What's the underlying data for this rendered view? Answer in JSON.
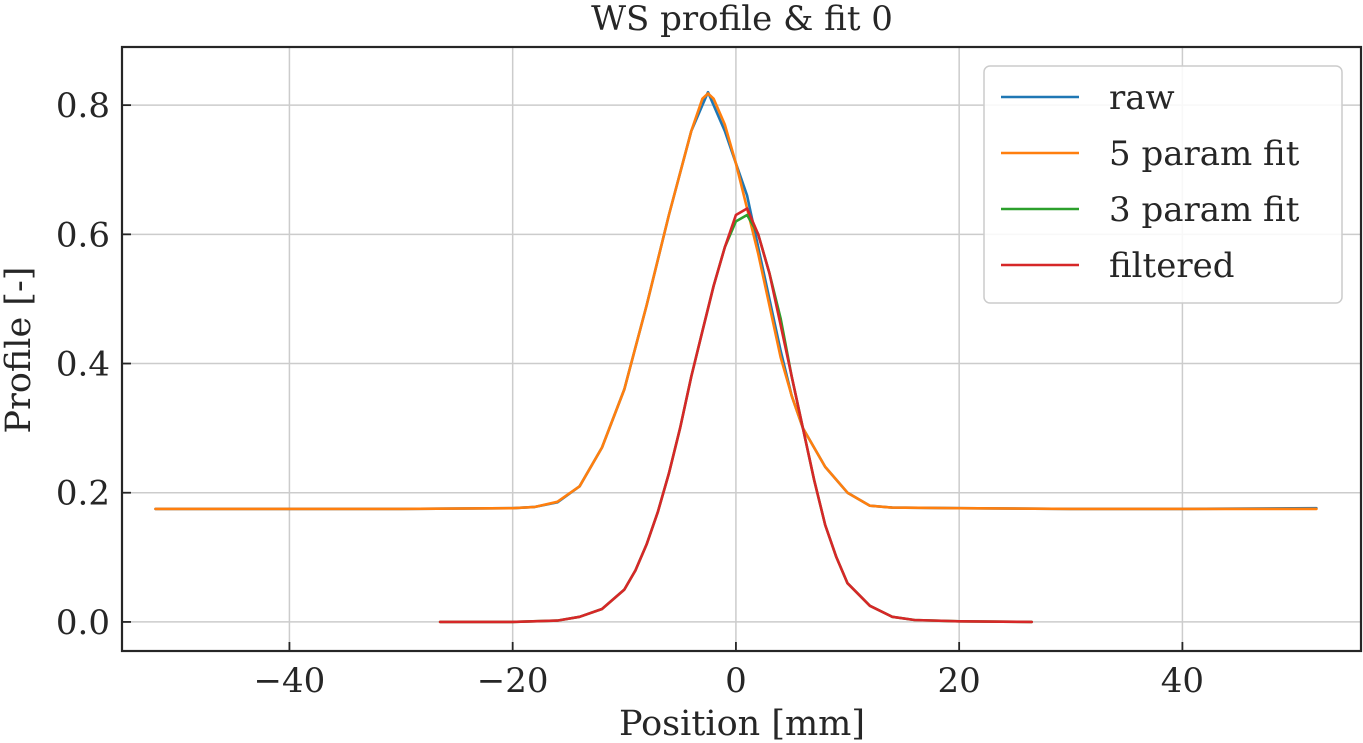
{
  "chart_data": {
    "type": "line",
    "title": "WS profile & fit 0",
    "xlabel": "Position [mm]",
    "ylabel": "Profile [-]",
    "xlim": [
      -55,
      56
    ],
    "ylim": [
      -0.045,
      0.89
    ],
    "xticks": [
      -40,
      -20,
      0,
      20,
      40
    ],
    "xtick_labels": [
      "−40",
      "−20",
      "0",
      "20",
      "40"
    ],
    "yticks": [
      0.0,
      0.2,
      0.4,
      0.6,
      0.8
    ],
    "ytick_labels": [
      "0.0",
      "0.2",
      "0.4",
      "0.6",
      "0.8"
    ],
    "grid": true,
    "legend_position": "top-right",
    "series": [
      {
        "name": "raw",
        "color": "#1f77b4",
        "x": [
          -52,
          -40,
          -30,
          -20,
          -18,
          -16,
          -14,
          -12,
          -10,
          -8,
          -6,
          -4,
          -3,
          -2.5,
          -2,
          -1,
          0,
          1,
          2,
          3,
          4,
          5,
          6,
          8,
          10,
          12,
          14,
          20,
          30,
          40,
          52
        ],
        "y": [
          0.175,
          0.175,
          0.175,
          0.176,
          0.178,
          0.185,
          0.21,
          0.27,
          0.36,
          0.49,
          0.63,
          0.76,
          0.8,
          0.82,
          0.8,
          0.76,
          0.71,
          0.66,
          0.58,
          0.5,
          0.42,
          0.35,
          0.3,
          0.24,
          0.2,
          0.18,
          0.177,
          0.176,
          0.175,
          0.175,
          0.176
        ]
      },
      {
        "name": "5 param fit",
        "color": "#ff7f0e",
        "x": [
          -52,
          -40,
          -30,
          -20,
          -18,
          -16,
          -14,
          -12,
          -10,
          -8,
          -6,
          -4,
          -3,
          -2.5,
          -2,
          -1,
          0,
          1,
          2,
          3,
          4,
          5,
          6,
          8,
          10,
          12,
          14,
          20,
          30,
          40,
          52
        ],
        "y": [
          0.175,
          0.175,
          0.175,
          0.176,
          0.178,
          0.186,
          0.21,
          0.27,
          0.36,
          0.49,
          0.63,
          0.76,
          0.81,
          0.818,
          0.81,
          0.77,
          0.71,
          0.64,
          0.57,
          0.49,
          0.41,
          0.35,
          0.3,
          0.24,
          0.2,
          0.18,
          0.177,
          0.176,
          0.175,
          0.175,
          0.175
        ]
      },
      {
        "name": "3 param fit",
        "color": "#2ca02c",
        "x": [
          -26.5,
          -20,
          -16,
          -14,
          -12,
          -10,
          -9,
          -8,
          -7,
          -6,
          -5,
          -4,
          -3,
          -2,
          -1,
          0,
          1,
          2,
          3,
          4,
          5,
          6,
          7,
          8,
          9,
          10,
          12,
          14,
          16,
          20,
          26.5
        ],
        "y": [
          0.0,
          0.0,
          0.002,
          0.008,
          0.02,
          0.05,
          0.08,
          0.12,
          0.17,
          0.23,
          0.3,
          0.38,
          0.45,
          0.52,
          0.58,
          0.62,
          0.63,
          0.6,
          0.54,
          0.47,
          0.38,
          0.3,
          0.22,
          0.15,
          0.1,
          0.06,
          0.025,
          0.008,
          0.003,
          0.001,
          0.0
        ]
      },
      {
        "name": "filtered",
        "color": "#d62728",
        "x": [
          -26.5,
          -20,
          -16,
          -14,
          -12,
          -10,
          -9,
          -8,
          -7,
          -6,
          -5,
          -4,
          -3,
          -2,
          -1,
          0,
          1,
          2,
          3,
          4,
          5,
          6,
          7,
          8,
          9,
          10,
          12,
          14,
          16,
          20,
          26.5
        ],
        "y": [
          0.0,
          0.0,
          0.002,
          0.008,
          0.02,
          0.05,
          0.08,
          0.12,
          0.17,
          0.23,
          0.3,
          0.38,
          0.45,
          0.52,
          0.58,
          0.63,
          0.64,
          0.6,
          0.54,
          0.46,
          0.38,
          0.3,
          0.22,
          0.15,
          0.1,
          0.06,
          0.025,
          0.008,
          0.003,
          0.001,
          0.0
        ]
      }
    ]
  }
}
